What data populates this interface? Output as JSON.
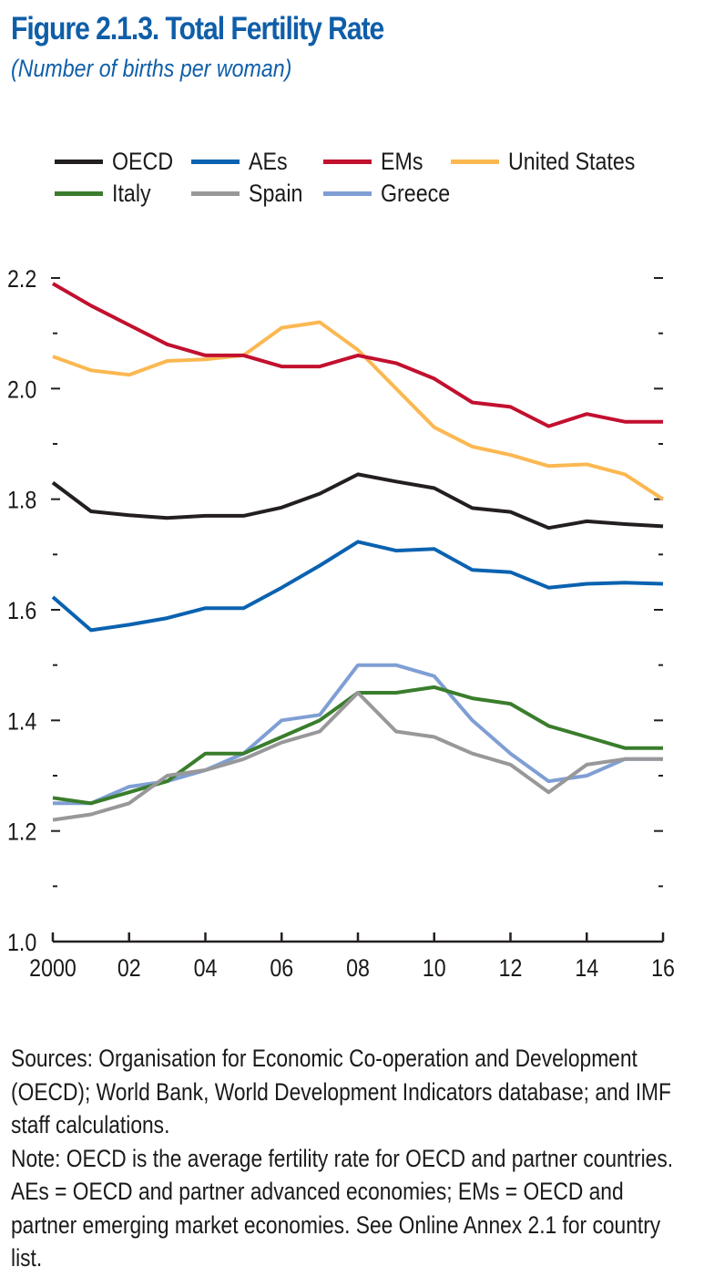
{
  "figure": {
    "title": "Figure 2.1.3.  Total Fertility Rate",
    "subtitle": "(Number of births per woman)"
  },
  "footnote": {
    "sources": "Sources: Organisation for Economic Co-operation and Development (OECD); World Bank, World Development Indicators database; and IMF staff calculations.",
    "note": "Note: OECD is the average fertility rate for OECD and partner countries. AEs = OECD and partner advanced economies; EMs = OECD and partner emerging market economies. See Online Annex 2.1 for country list."
  },
  "chart_data": {
    "type": "line",
    "title": "Total Fertility Rate",
    "subtitle": "(Number of births per woman)",
    "xlabel": "",
    "ylabel": "",
    "x": [
      2000,
      2001,
      2002,
      2003,
      2004,
      2005,
      2006,
      2007,
      2008,
      2009,
      2010,
      2011,
      2012,
      2013,
      2014,
      2015,
      2016
    ],
    "xlim": [
      2000,
      2016
    ],
    "ylim": [
      1.0,
      2.2
    ],
    "x_tick_values": [
      2000,
      2002,
      2004,
      2006,
      2008,
      2010,
      2012,
      2014,
      2016
    ],
    "x_tick_labels": [
      "2000",
      "02",
      "04",
      "06",
      "08",
      "10",
      "12",
      "14",
      "16"
    ],
    "y_tick_values": [
      1.0,
      1.2,
      1.4,
      1.6,
      1.8,
      2.0,
      2.2
    ],
    "y_tick_labels": [
      "1.0",
      "1.2",
      "1.4",
      "1.6",
      "1.8",
      "2.0",
      "2.2"
    ],
    "y_minor_ticks": [
      1.1,
      1.3,
      1.5,
      1.7,
      1.9,
      2.1
    ],
    "grid": false,
    "legend_position": "top",
    "series": [
      {
        "name": "OECD",
        "color": "#231f20",
        "values": [
          1.83,
          1.778,
          1.771,
          1.766,
          1.77,
          1.77,
          1.785,
          1.81,
          1.845,
          1.832,
          1.82,
          1.784,
          1.777,
          1.748,
          1.76,
          1.755,
          1.751
        ]
      },
      {
        "name": "AEs",
        "color": "#0a62b0",
        "values": [
          1.623,
          1.563,
          1.573,
          1.585,
          1.603,
          1.603,
          1.64,
          1.68,
          1.723,
          1.707,
          1.71,
          1.672,
          1.668,
          1.64,
          1.647,
          1.649,
          1.647
        ]
      },
      {
        "name": "EMs",
        "color": "#c2102f",
        "values": [
          2.19,
          2.15,
          2.115,
          2.08,
          2.06,
          2.06,
          2.04,
          2.04,
          2.06,
          2.046,
          2.018,
          1.975,
          1.967,
          1.932,
          1.954,
          1.94,
          1.94
        ]
      },
      {
        "name": "United States",
        "color": "#fbb851",
        "values": [
          2.058,
          2.033,
          2.025,
          2.05,
          2.053,
          2.06,
          2.11,
          2.12,
          2.07,
          2.0,
          1.93,
          1.895,
          1.88,
          1.86,
          1.863,
          1.845,
          1.8
        ]
      },
      {
        "name": "Italy",
        "color": "#3a7d2c",
        "values": [
          1.26,
          1.25,
          1.27,
          1.29,
          1.34,
          1.34,
          1.37,
          1.4,
          1.45,
          1.45,
          1.46,
          1.44,
          1.43,
          1.39,
          1.37,
          1.35,
          1.35
        ]
      },
      {
        "name": "Spain",
        "color": "#98989a",
        "values": [
          1.22,
          1.23,
          1.25,
          1.3,
          1.31,
          1.33,
          1.36,
          1.38,
          1.45,
          1.38,
          1.37,
          1.34,
          1.32,
          1.27,
          1.32,
          1.33,
          1.33
        ]
      },
      {
        "name": "Greece",
        "color": "#7f9fd4",
        "values": [
          1.25,
          1.25,
          1.28,
          1.29,
          1.31,
          1.34,
          1.4,
          1.41,
          1.5,
          1.5,
          1.48,
          1.4,
          1.34,
          1.29,
          1.3,
          1.33,
          1.33
        ]
      }
    ],
    "draw_order": [
      "Greece",
      "Italy",
      "Spain",
      "United States",
      "EMs",
      "AEs",
      "OECD"
    ]
  }
}
